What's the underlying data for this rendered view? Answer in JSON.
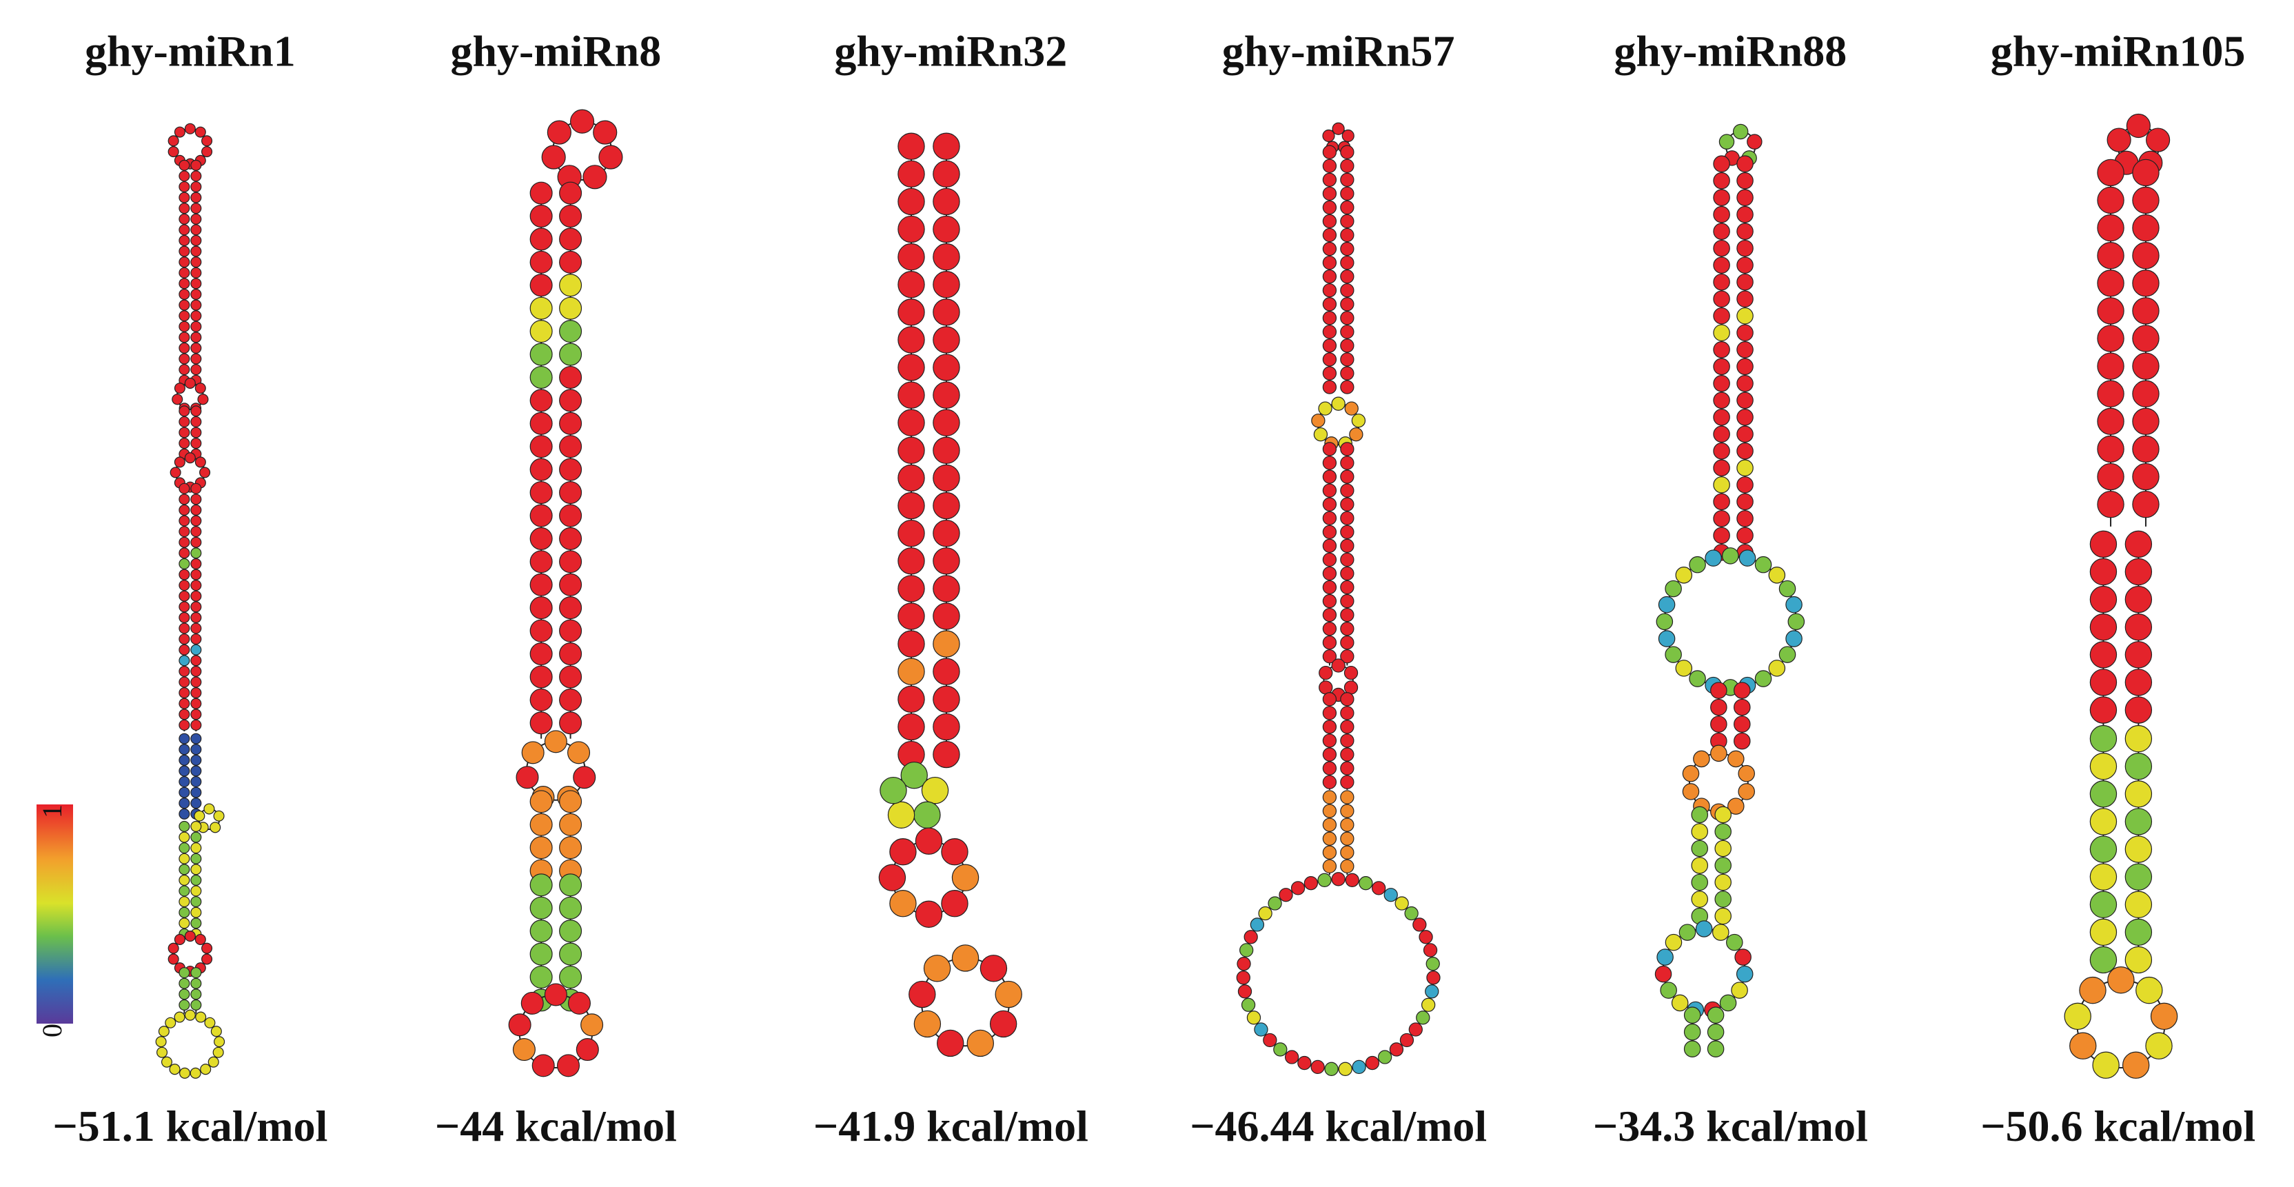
{
  "panels": [
    {
      "title": "ghy-miRn1",
      "energy": "−51.1 kcal/mol"
    },
    {
      "title": "ghy-miRn8",
      "energy": "−44 kcal/mol"
    },
    {
      "title": "ghy-miRn32",
      "energy": "−41.9 kcal/mol"
    },
    {
      "title": "ghy-miRn57",
      "energy": "−46.44 kcal/mol"
    },
    {
      "title": "ghy-miRn88",
      "energy": "−34.3 kcal/mol"
    },
    {
      "title": "ghy-miRn105",
      "energy": "−50.6 kcal/mol"
    }
  ],
  "colorbar": {
    "max": 1,
    "min": 0
  }
}
